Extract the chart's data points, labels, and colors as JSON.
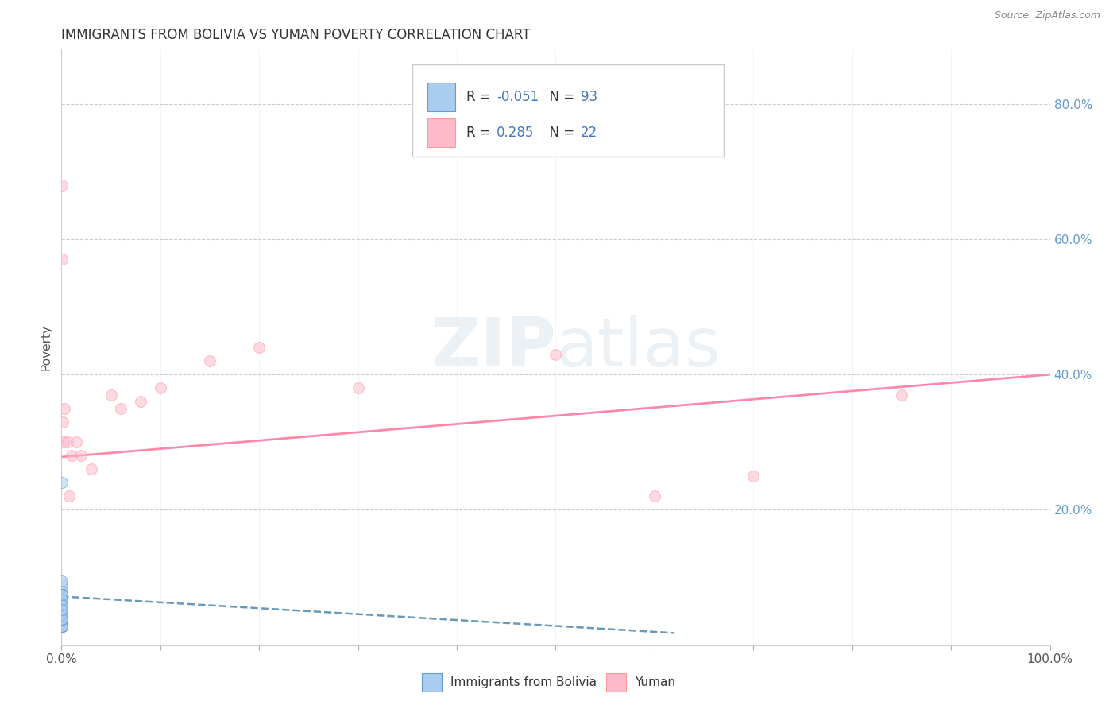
{
  "title": "IMMIGRANTS FROM BOLIVIA VS YUMAN POVERTY CORRELATION CHART",
  "source": "Source: ZipAtlas.com",
  "ylabel": "Poverty",
  "legend_label1": "Immigrants from Bolivia",
  "legend_label2": "Yuman",
  "blue_color": "#AACCEE",
  "pink_color": "#FFBBCC",
  "blue_edge": "#6699CC",
  "pink_edge": "#FF9999",
  "trend_blue_color": "#6699BB",
  "trend_pink_color": "#FF88AA",
  "legend_blue_fill": "#AACCEE",
  "legend_pink_fill": "#FFBBCC",
  "background": "#FFFFFF",
  "grid_color": "#CCCCCC",
  "right_tick_color": "#6699CC",
  "blue_scatter_x": [
    0.0002,
    0.0003,
    0.0002,
    0.0004,
    0.0003,
    0.0002,
    0.0005,
    0.0003,
    0.0002,
    0.0004,
    0.0006,
    0.0003,
    0.0002,
    0.0004,
    0.0003,
    0.0002,
    0.0005,
    0.0002,
    0.0003,
    0.0004,
    0.0002,
    0.0003,
    0.0004,
    0.0002,
    0.0005,
    0.0003,
    0.0002,
    0.0004,
    0.0003,
    0.0006,
    0.0002,
    0.0003,
    0.0004,
    0.0002,
    0.0005,
    0.0003,
    0.0002,
    0.0004,
    0.0003,
    0.0002,
    0.0003,
    0.0002,
    0.0004,
    0.0003,
    0.0002,
    0.0005,
    0.0003,
    0.0004,
    0.0002,
    0.0003,
    0.0004,
    0.0002,
    0.0003,
    0.0004,
    0.0003,
    0.0002,
    0.0003,
    0.0004,
    0.0002,
    0.0003,
    0.0002,
    0.0003,
    0.0002,
    0.0004,
    0.0003,
    0.0002,
    0.0003,
    0.0004,
    0.0002,
    0.0005,
    0.0003,
    0.0002,
    0.0004,
    0.0003,
    0.0005,
    0.0002,
    0.0004,
    0.0003,
    0.0002,
    0.0006,
    0.0003,
    0.0002,
    0.0004,
    0.0003,
    0.0002,
    0.0005,
    0.0003,
    0.0004,
    0.0002,
    0.0003,
    0.0002,
    0.0003,
    0.0004
  ],
  "blue_scatter_y": [
    0.04,
    0.055,
    0.09,
    0.045,
    0.075,
    0.03,
    0.065,
    0.05,
    0.08,
    0.035,
    0.06,
    0.095,
    0.042,
    0.052,
    0.07,
    0.028,
    0.075,
    0.042,
    0.058,
    0.038,
    0.052,
    0.068,
    0.038,
    0.045,
    0.062,
    0.075,
    0.028,
    0.052,
    0.038,
    0.068,
    0.045,
    0.06,
    0.038,
    0.052,
    0.075,
    0.028,
    0.045,
    0.06,
    0.038,
    0.068,
    0.052,
    0.038,
    0.045,
    0.06,
    0.075,
    0.028,
    0.052,
    0.038,
    0.068,
    0.045,
    0.06,
    0.038,
    0.052,
    0.075,
    0.028,
    0.045,
    0.06,
    0.038,
    0.068,
    0.052,
    0.038,
    0.045,
    0.06,
    0.075,
    0.028,
    0.052,
    0.038,
    0.068,
    0.045,
    0.06,
    0.038,
    0.052,
    0.075,
    0.028,
    0.045,
    0.06,
    0.038,
    0.068,
    0.052,
    0.038,
    0.24,
    0.045,
    0.06,
    0.075,
    0.028,
    0.052,
    0.038,
    0.068,
    0.045,
    0.06,
    0.038,
    0.052,
    0.075
  ],
  "pink_scatter_x": [
    0.0003,
    0.0005,
    0.0012,
    0.002,
    0.003,
    0.006,
    0.008,
    0.01,
    0.015,
    0.02,
    0.03,
    0.05,
    0.06,
    0.08,
    0.1,
    0.15,
    0.2,
    0.3,
    0.5,
    0.6,
    0.7,
    0.85
  ],
  "pink_scatter_y": [
    0.68,
    0.57,
    0.33,
    0.3,
    0.35,
    0.3,
    0.22,
    0.28,
    0.3,
    0.28,
    0.26,
    0.37,
    0.35,
    0.36,
    0.38,
    0.42,
    0.44,
    0.38,
    0.43,
    0.22,
    0.25,
    0.37
  ],
  "blue_trend_x0": 0.0,
  "blue_trend_x1": 0.62,
  "blue_trend_y0": 0.072,
  "blue_trend_y1": 0.018,
  "pink_trend_x0": 0.0,
  "pink_trend_x1": 1.0,
  "pink_trend_y0": 0.278,
  "pink_trend_y1": 0.4,
  "marker_size": 100,
  "alpha": 0.55,
  "xlim": [
    0.0,
    1.0
  ],
  "ylim": [
    0.0,
    0.88
  ],
  "y_ticks": [
    0.0,
    0.2,
    0.4,
    0.6,
    0.8
  ],
  "right_y_labels": [
    "",
    "20.0%",
    "40.0%",
    "60.0%",
    "80.0%"
  ],
  "x_tick_positions": [
    0.0,
    0.1,
    0.2,
    0.3,
    0.4,
    0.5,
    0.6,
    0.7,
    0.8,
    0.9,
    1.0
  ],
  "legend_text1a": "R = ",
  "legend_val1": "-0.051",
  "legend_text1b": "  N = ",
  "legend_n1": "93",
  "legend_text2a": "R =  ",
  "legend_val2": "0.285",
  "legend_text2b": "  N = ",
  "legend_n2": "22",
  "legend_color_r": "#4477BB",
  "legend_color_n": "#4477BB",
  "title_fontsize": 12,
  "label_fontsize": 11,
  "source_text": "Source: ZipAtlas.com"
}
